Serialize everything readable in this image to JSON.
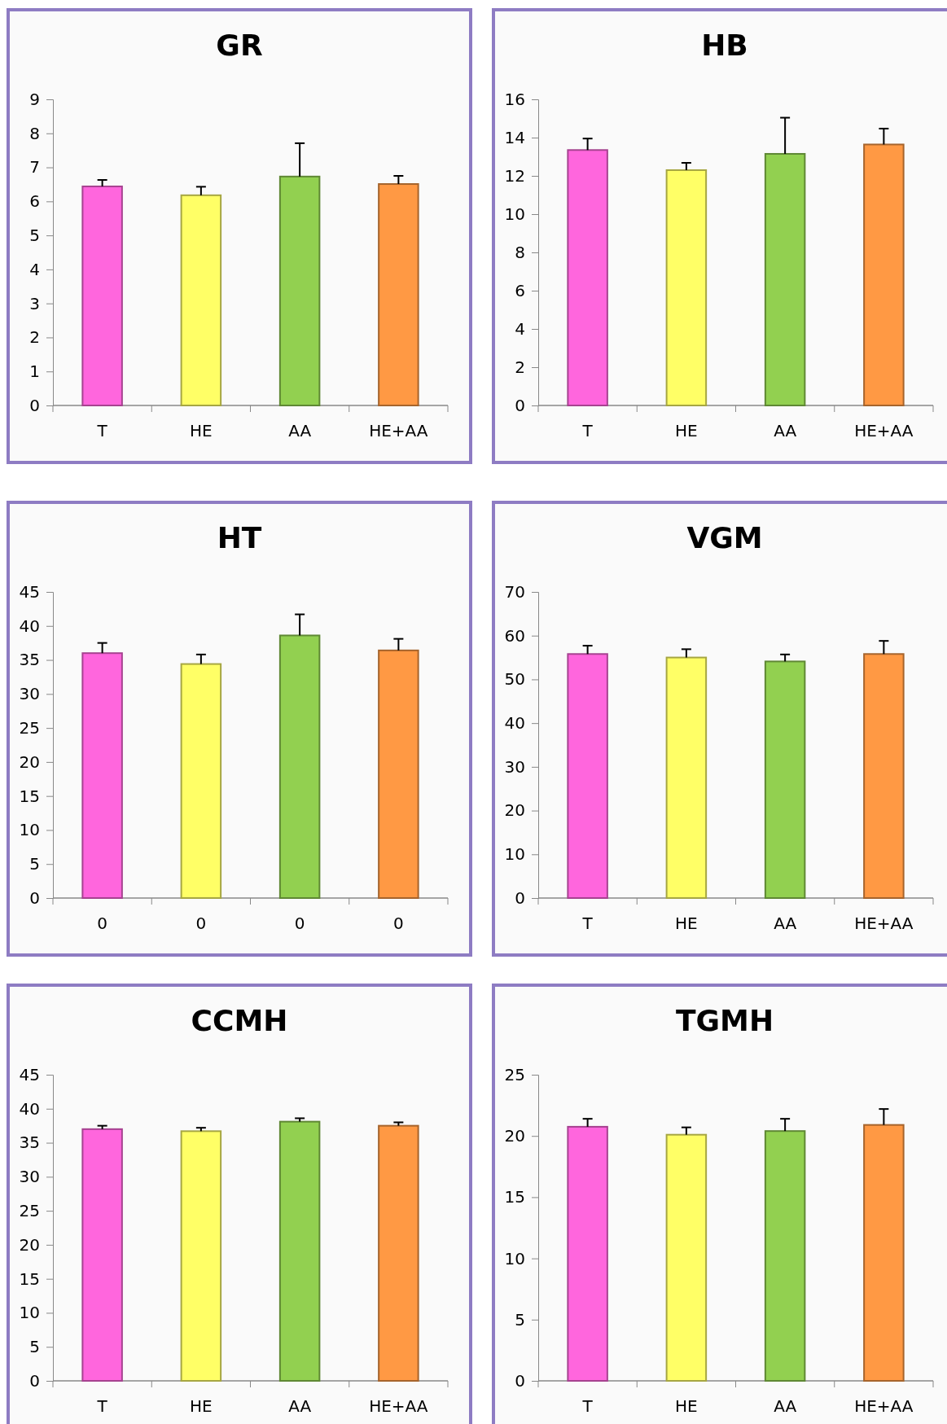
{
  "chart_data": [
    {
      "type": "bar",
      "title": "GR",
      "categories": [
        "T",
        "HE",
        "AA",
        "HE+AA"
      ],
      "values": [
        6.44,
        6.18,
        6.73,
        6.51
      ],
      "colors": [
        "#ff66dd",
        "#ffff66",
        "#92d050",
        "#ff9944"
      ],
      "errors": [
        [
          6.44,
          6.63
        ],
        [
          6.18,
          6.43
        ],
        [
          6.73,
          7.71
        ],
        [
          6.51,
          6.75
        ]
      ],
      "ylim": [
        0,
        9
      ],
      "yticks": [
        0,
        1,
        2,
        3,
        4,
        5,
        6,
        7,
        8,
        9
      ],
      "grid": false
    },
    {
      "type": "bar",
      "title": "HB",
      "categories": [
        "T",
        "HE",
        "AA",
        "HE+AA"
      ],
      "values": [
        13.35,
        12.3,
        13.15,
        13.64
      ],
      "colors": [
        "#ff66dd",
        "#ffff66",
        "#92d050",
        "#ff9944"
      ],
      "errors": [
        [
          13.35,
          13.95
        ],
        [
          12.3,
          12.68
        ],
        [
          13.15,
          15.04
        ],
        [
          13.64,
          14.47
        ]
      ],
      "ylim": [
        0,
        16
      ],
      "yticks": [
        0,
        2,
        4,
        6,
        8,
        10,
        12,
        14,
        16
      ],
      "grid": false
    },
    {
      "type": "bar",
      "title": "HT",
      "categories": [
        "0",
        "0",
        "0",
        "0"
      ],
      "values": [
        36.0,
        34.4,
        38.6,
        36.4
      ],
      "colors": [
        "#ff66dd",
        "#ffff66",
        "#92d050",
        "#ff9944"
      ],
      "errors": [
        [
          36.0,
          37.5
        ],
        [
          34.4,
          35.8
        ],
        [
          38.6,
          41.7
        ],
        [
          36.4,
          38.1
        ]
      ],
      "ylim": [
        0,
        45
      ],
      "yticks": [
        0,
        5,
        10,
        15,
        20,
        25,
        30,
        35,
        40,
        45
      ],
      "grid": false
    },
    {
      "type": "bar",
      "title": "VGM",
      "categories": [
        "T",
        "HE",
        "AA",
        "HE+AA"
      ],
      "values": [
        55.8,
        55.0,
        54.1,
        55.8
      ],
      "colors": [
        "#ff66dd",
        "#ffff66",
        "#92d050",
        "#ff9944"
      ],
      "errors": [
        [
          55.8,
          57.7
        ],
        [
          55.0,
          56.9
        ],
        [
          54.1,
          55.7
        ],
        [
          55.8,
          58.8
        ]
      ],
      "ylim": [
        0,
        70
      ],
      "yticks": [
        0,
        10,
        20,
        30,
        40,
        50,
        60,
        70
      ],
      "grid": false
    },
    {
      "type": "bar",
      "title": "CCMH",
      "categories": [
        "T",
        "HE",
        "AA",
        "HE+AA"
      ],
      "values": [
        37.0,
        36.7,
        38.1,
        37.5
      ],
      "colors": [
        "#ff66dd",
        "#ffff66",
        "#92d050",
        "#ff9944"
      ],
      "errors": [
        [
          37.0,
          37.5
        ],
        [
          36.7,
          37.2
        ],
        [
          38.1,
          38.6
        ],
        [
          37.5,
          38.0
        ]
      ],
      "ylim": [
        0,
        45
      ],
      "yticks": [
        0,
        5,
        10,
        15,
        20,
        25,
        30,
        35,
        40,
        45
      ],
      "grid": false
    },
    {
      "type": "bar",
      "title": "TGMH",
      "categories": [
        "T",
        "HE",
        "AA",
        "HE+AA"
      ],
      "values": [
        20.75,
        20.1,
        20.4,
        20.9
      ],
      "colors": [
        "#ff66dd",
        "#ffff66",
        "#92d050",
        "#ff9944"
      ],
      "errors": [
        [
          20.75,
          21.4
        ],
        [
          20.1,
          20.7
        ],
        [
          20.4,
          21.4
        ],
        [
          20.9,
          22.2
        ]
      ],
      "ylim": [
        0,
        25
      ],
      "yticks": [
        0,
        5,
        10,
        15,
        20,
        25
      ],
      "grid": false
    }
  ]
}
